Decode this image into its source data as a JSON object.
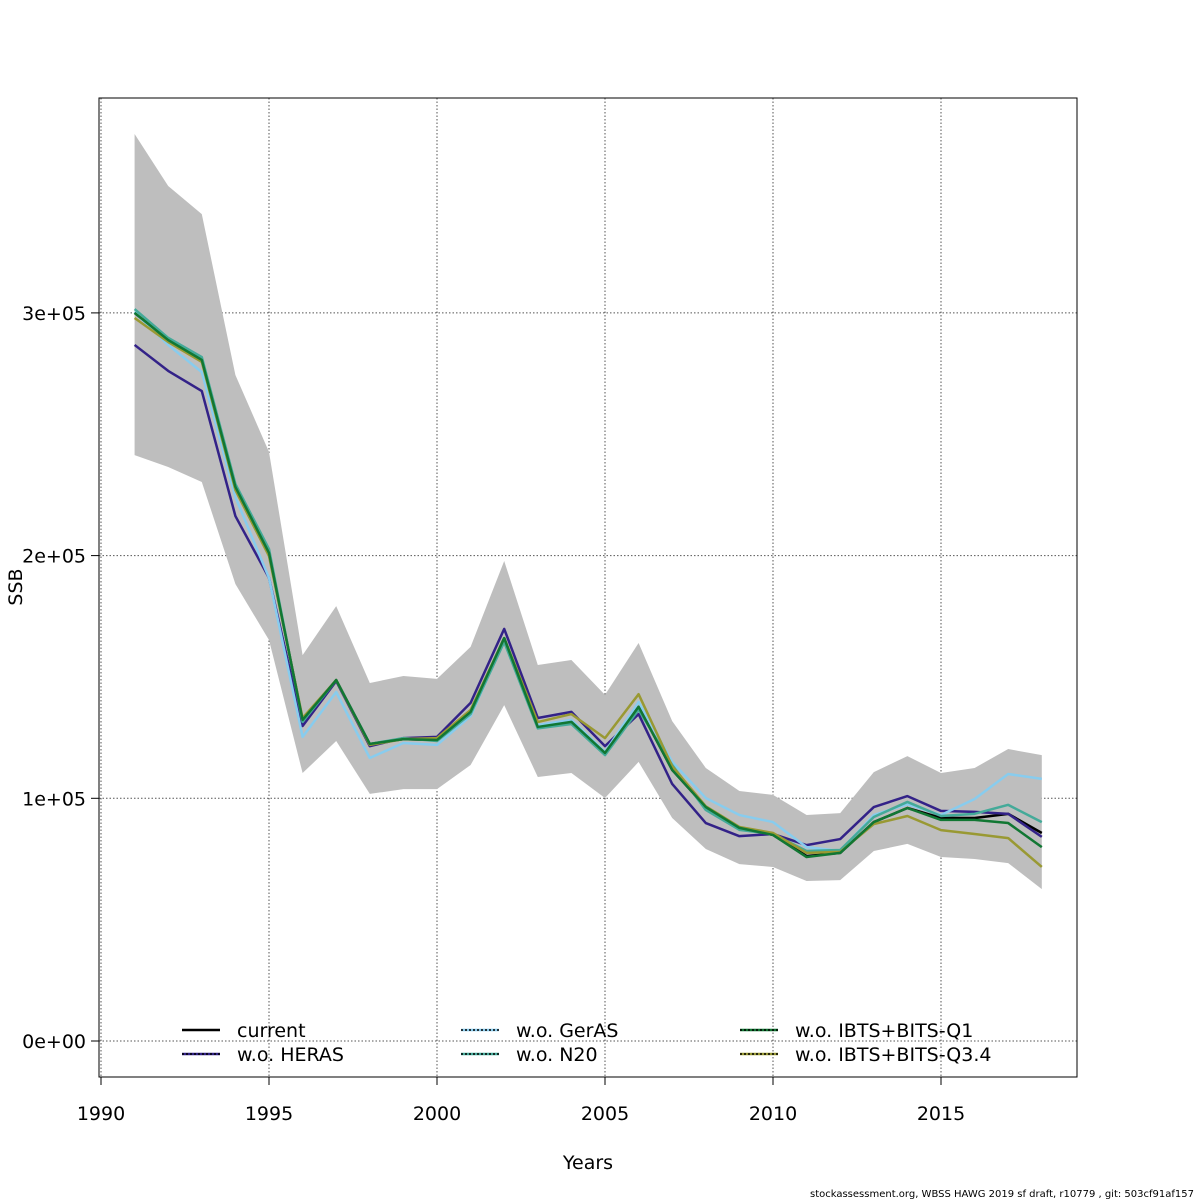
{
  "chart_data": {
    "type": "line",
    "title": "",
    "xlabel": "Years",
    "ylabel": "SSB",
    "xlim": [
      1990,
      2019
    ],
    "ylim": [
      -15000,
      388000
    ],
    "x_ticks": [
      1990,
      1995,
      2000,
      2005,
      2010,
      2015
    ],
    "x_tick_labels": [
      "1990",
      "1995",
      "2000",
      "2005",
      "2010",
      "2015"
    ],
    "y_ticks": [
      0,
      100000,
      200000,
      300000
    ],
    "y_tick_labels": [
      "0e+00",
      "1e+05",
      "2e+05",
      "3e+05"
    ],
    "grid": true,
    "legend_position": "bottom",
    "x": [
      1991,
      1992,
      1993,
      1994,
      1995,
      1996,
      1997,
      1998,
      1999,
      2000,
      2001,
      2002,
      2003,
      2004,
      2005,
      2006,
      2007,
      2008,
      2009,
      2010,
      2011,
      2012,
      2013,
      2014,
      2015,
      2016,
      2017,
      2018
    ],
    "confidence_band": {
      "color": "#bebebe",
      "upper": [
        373700,
        352300,
        340700,
        274400,
        242700,
        159000,
        179200,
        147500,
        150400,
        149200,
        162400,
        197800,
        154900,
        157000,
        142600,
        164000,
        131800,
        112500,
        103000,
        101400,
        93100,
        93900,
        110800,
        117400,
        110400,
        112500,
        120300,
        117800
      ],
      "lower": [
        241400,
        236500,
        230300,
        188300,
        165200,
        110400,
        123600,
        101800,
        103800,
        103800,
        113700,
        138400,
        108800,
        110400,
        100100,
        115000,
        91900,
        79100,
        72900,
        71700,
        65900,
        66300,
        78300,
        81200,
        75800,
        75000,
        73300,
        62600
      ]
    },
    "series": [
      {
        "name": "current",
        "color": "#000000",
        "dashed": false,
        "values": [
          300000,
          288800,
          280600,
          228300,
          201100,
          132300,
          148700,
          122400,
          124400,
          124000,
          135600,
          166000,
          129400,
          131500,
          118700,
          137700,
          111700,
          96400,
          87800,
          84900,
          76200,
          77500,
          90200,
          96000,
          91900,
          91900,
          93600,
          85700
        ]
      },
      {
        "name": "w.o. HERAS",
        "color": "#332288",
        "dashed": true,
        "values": [
          286800,
          276100,
          267800,
          216300,
          190800,
          129800,
          148300,
          121500,
          124800,
          125300,
          139300,
          169800,
          133100,
          135600,
          121500,
          134700,
          105900,
          89800,
          84400,
          85300,
          80700,
          83200,
          96400,
          100900,
          94800,
          94400,
          93600,
          84100
        ]
      },
      {
        "name": "w.o. GerAS",
        "color": "#88CCEE",
        "dashed": true,
        "values": [
          300400,
          286800,
          275600,
          224100,
          190800,
          125300,
          143800,
          116600,
          122800,
          122000,
          133900,
          165200,
          130200,
          132300,
          119100,
          139700,
          115000,
          100100,
          93100,
          90200,
          79900,
          78300,
          93100,
          97600,
          93100,
          99700,
          110000,
          108000
        ]
      },
      {
        "name": "w.o. N20",
        "color": "#44AA99",
        "dashed": true,
        "values": [
          301600,
          289700,
          281800,
          229500,
          202700,
          131500,
          148700,
          122400,
          124800,
          123600,
          134700,
          164400,
          128800,
          130600,
          117800,
          136500,
          113700,
          95200,
          87000,
          85300,
          78300,
          78700,
          92300,
          98500,
          92700,
          93600,
          97300,
          90200
        ]
      },
      {
        "name": "w.o. IBTS+BITS-Q1",
        "color": "#117733",
        "dashed": true,
        "values": [
          300000,
          288800,
          280600,
          228300,
          201100,
          132300,
          148700,
          122400,
          124400,
          124000,
          135600,
          166000,
          129400,
          131500,
          118700,
          137700,
          111700,
          96400,
          87800,
          84900,
          75800,
          77500,
          90200,
          96000,
          91100,
          91100,
          89800,
          79900
        ]
      },
      {
        "name": "w.o. IBTS+BITS-Q3.4",
        "color": "#999933",
        "dashed": true,
        "values": [
          297900,
          288000,
          279800,
          227000,
          199800,
          133100,
          148700,
          122000,
          124400,
          124800,
          136400,
          166000,
          131400,
          134700,
          124800,
          142900,
          113200,
          96700,
          88200,
          85700,
          77500,
          77900,
          89400,
          92700,
          86900,
          85300,
          83600,
          71700
        ]
      }
    ]
  },
  "footer": "stockassessment.org, WBSS  HAWG  2019  sf  draft, r10779 , git: 503cf91af157"
}
